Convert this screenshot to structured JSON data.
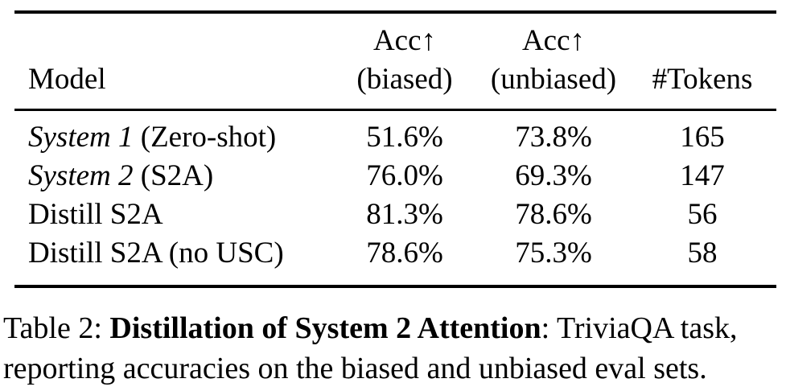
{
  "table": {
    "columns": {
      "model": "Model",
      "acc_biased": {
        "line1": "Acc↑",
        "line2": "(biased)"
      },
      "acc_unbiased": {
        "line1": "Acc↑",
        "line2": "(unbiased)"
      },
      "tokens": "#Tokens"
    },
    "rows": [
      {
        "model_italic": "System 1",
        "model_rest": " (Zero-shot)",
        "acc_biased": "51.6%",
        "acc_unbiased": "73.8%",
        "tokens": "165"
      },
      {
        "model_italic": "System 2",
        "model_rest": " (S2A)",
        "acc_biased": "76.0%",
        "acc_unbiased": "69.3%",
        "tokens": "147"
      },
      {
        "model_italic": "",
        "model_rest": "Distill S2A",
        "acc_biased": "81.3%",
        "acc_unbiased": "78.6%",
        "tokens": "56"
      },
      {
        "model_italic": "",
        "model_rest": "Distill S2A (no USC)",
        "acc_biased": "78.6%",
        "acc_unbiased": "75.3%",
        "tokens": "58"
      }
    ]
  },
  "caption": {
    "prefix": "Table 2: ",
    "bold": "Distillation of System 2 Attention",
    "after_bold": ": TriviaQA task,",
    "line2": "reporting accuracies on the biased and unbiased eval sets."
  },
  "colors": {
    "text": "#000000",
    "background": "#ffffff",
    "rule": "#000000"
  }
}
